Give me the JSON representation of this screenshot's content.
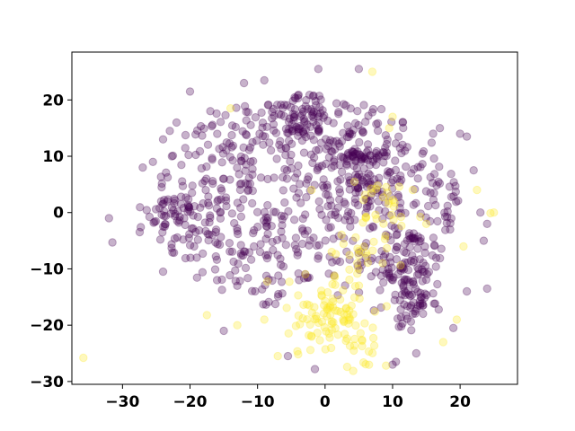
{
  "chart_data": {
    "type": "scatter",
    "title": "",
    "xlabel": "",
    "ylabel": "",
    "xlim": [
      -37.5,
      28.5
    ],
    "ylim": [
      -30.5,
      28.5
    ],
    "grid": false,
    "x_ticks": [
      -30,
      -20,
      -10,
      0,
      10,
      20
    ],
    "y_ticks": [
      -30,
      -20,
      -10,
      0,
      10,
      20
    ],
    "x_tick_labels": [
      "−30",
      "−20",
      "−10",
      "0",
      "10",
      "20"
    ],
    "y_tick_labels": [
      "−30",
      "−20",
      "−10",
      "0",
      "10",
      "20"
    ],
    "marker_alpha": 0.3,
    "series": [
      {
        "color": "#440154",
        "clusters": [
          {
            "center": [
              -4,
              16
            ],
            "spread": 2.2,
            "count": 70
          },
          {
            "center": [
              5,
              8
            ],
            "spread": 2.6,
            "count": 90
          },
          {
            "center": [
              12,
              -9
            ],
            "spread": 2.4,
            "count": 70
          },
          {
            "center": [
              13,
              -16
            ],
            "spread": 2.2,
            "count": 55
          },
          {
            "center": [
              -20,
              0
            ],
            "spread": 2.0,
            "count": 35
          },
          {
            "center": [
              -24,
              -1
            ],
            "spread": 1.6,
            "count": 20
          }
        ],
        "background_region": {
          "cx": -3,
          "cy": 2,
          "rx": 23,
          "ry": 19,
          "count": 640
        },
        "points": [
          [
            -32,
            -1
          ],
          [
            -31.5,
            -5.3
          ],
          [
            -27,
            8
          ],
          [
            -25.5,
            9
          ],
          [
            -24,
            13
          ],
          [
            -23,
            14.5
          ],
          [
            -22,
            16
          ],
          [
            -20,
            21.5
          ],
          [
            -17,
            18
          ],
          [
            -12,
            23
          ],
          [
            -9,
            23.5
          ],
          [
            -1,
            25.5
          ],
          [
            5,
            25.5
          ],
          [
            16,
            14
          ],
          [
            17,
            15
          ],
          [
            20,
            14
          ],
          [
            21,
            13.5
          ],
          [
            22,
            7.5
          ],
          [
            23,
            0
          ],
          [
            24,
            -2
          ],
          [
            23.5,
            -5
          ],
          [
            24,
            -13.5
          ],
          [
            21,
            -14
          ],
          [
            19,
            -20.5
          ],
          [
            10,
            -27
          ],
          [
            10.5,
            -26.5
          ],
          [
            13.5,
            -25
          ],
          [
            -1.5,
            -27.8
          ],
          [
            -5.5,
            -25.5
          ],
          [
            -13,
            -13
          ],
          [
            -16,
            -12
          ],
          [
            -15,
            -21
          ],
          [
            -24,
            -10.5
          ],
          [
            -19,
            -8
          ]
        ]
      },
      {
        "color": "#fde725",
        "clusters": [
          {
            "center": [
              1,
              -18
            ],
            "spread": 3.4,
            "count": 95
          },
          {
            "center": [
              5,
              -8
            ],
            "spread": 2.5,
            "count": 25
          },
          {
            "center": [
              8,
              1
            ],
            "spread": 2.6,
            "count": 30
          },
          {
            "center": [
              5,
              -24
            ],
            "spread": 2.0,
            "count": 15
          }
        ],
        "points": [
          [
            -35.8,
            -25.8
          ],
          [
            -14,
            18.5
          ],
          [
            -17.5,
            -18.2
          ],
          [
            -13,
            -20
          ],
          [
            24.5,
            -0.1
          ],
          [
            25,
            0
          ],
          [
            22.5,
            4
          ],
          [
            20.5,
            -6
          ],
          [
            19.5,
            -19
          ],
          [
            17.5,
            -23
          ],
          [
            9.5,
            15
          ],
          [
            10,
            17
          ],
          [
            7,
            25
          ],
          [
            -2,
            4
          ],
          [
            -7,
            -25.5
          ],
          [
            -9,
            -19
          ],
          [
            15,
            -2
          ],
          [
            13,
            4
          ]
        ]
      }
    ]
  }
}
